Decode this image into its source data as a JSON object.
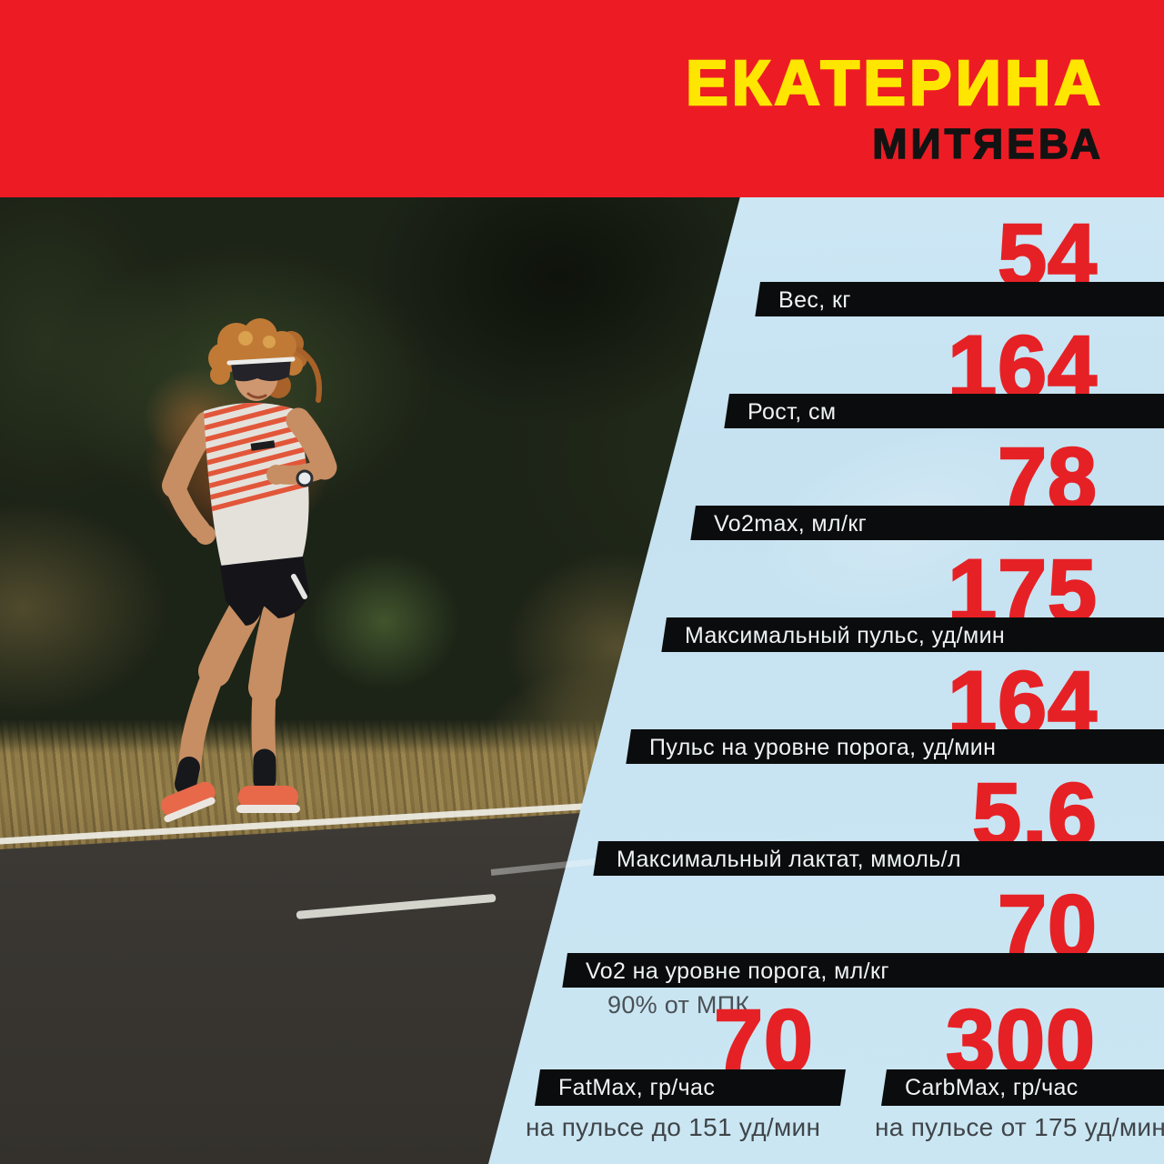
{
  "header": {
    "first_name": "ЕКАТЕРИНА",
    "last_name": "МИТЯЕВА"
  },
  "colors": {
    "banner_red": "#ed1c24",
    "name_yellow": "#ffe600",
    "name_black": "#131313",
    "number_red": "#e62125",
    "panel_blue": "#c8e5f4",
    "bar_black": "#0b0c0d",
    "bar_label_white": "#eef3f6",
    "note_gray": "#3f4549"
  },
  "chart_data": {
    "type": "table",
    "title": "ЕКАТЕРИНА МИТЯЕВА",
    "legend_position": "none",
    "rows": [
      {
        "value": "54",
        "label": "Вес, кг"
      },
      {
        "value": "164",
        "label": "Рост, см"
      },
      {
        "value": "78",
        "label": "Vo2max, мл/кг"
      },
      {
        "value": "175",
        "label": "Максимальный пульс, уд/мин"
      },
      {
        "value": "164",
        "label": "Пульс на уровне порога, уд/мин"
      },
      {
        "value": "5,6",
        "label": "Максимальный лактат, ммоль/л"
      },
      {
        "value": "70",
        "label": "Vo2 на уровне порога, мл/кг",
        "note": "90% от МПК"
      },
      {
        "value": "70",
        "label": "FatMax, гр/час",
        "note": "на пульсе до 151 уд/мин"
      },
      {
        "value": "300",
        "label": "CarbMax, гр/час",
        "note": "на пульсе от 175 уд/мин"
      }
    ]
  }
}
